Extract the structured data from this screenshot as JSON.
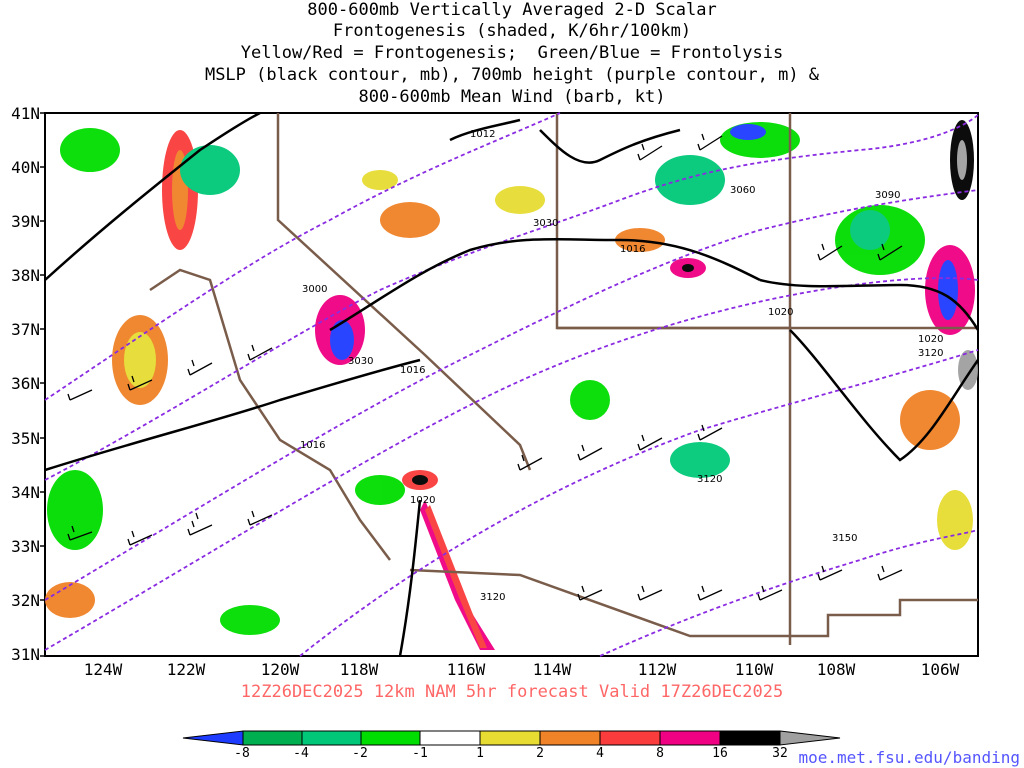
{
  "title_lines": [
    "800-600mb Vertically Averaged 2-D Scalar",
    "Frontogenesis (shaded, K/6hr/100km)",
    "Yellow/Red = Frontogenesis;  Green/Blue = Frontolysis",
    "MSLP (black contour, mb), 700mb height (purple contour, m) &",
    "800-600mb Mean Wind (barb, kt)"
  ],
  "lat_labels": [
    "41N",
    "40N",
    "39N",
    "38N",
    "37N",
    "36N",
    "35N",
    "34N",
    "33N",
    "32N",
    "31N"
  ],
  "lon_labels": [
    "124W",
    "122W",
    "120W",
    "118W",
    "116W",
    "114W",
    "112W",
    "110W",
    "108W",
    "106W"
  ],
  "valid_line": "12Z26DEC2025 12km NAM 5hr forecast Valid 17Z26DEC2025",
  "colorbar": {
    "labels": [
      "-8",
      "-4",
      "-2",
      "-1",
      "1",
      "2",
      "4",
      "8",
      "16",
      "32"
    ],
    "colors": [
      "#1e3cff",
      "#00b050",
      "#00c878",
      "#00dd00",
      "#ffffff",
      "#e6dc32",
      "#f08228",
      "#fa3c3c",
      "#f00082",
      "#000000",
      "#a0a0a0"
    ]
  },
  "credit": "moe.met.fsu.edu/banding",
  "mslp_labels": [
    "1012",
    "1016",
    "1016",
    "1016",
    "1020",
    "1020",
    "1020"
  ],
  "height_labels": [
    "3000",
    "3030",
    "3030",
    "3060",
    "3090",
    "3120",
    "3120",
    "3120",
    "3150"
  ]
}
